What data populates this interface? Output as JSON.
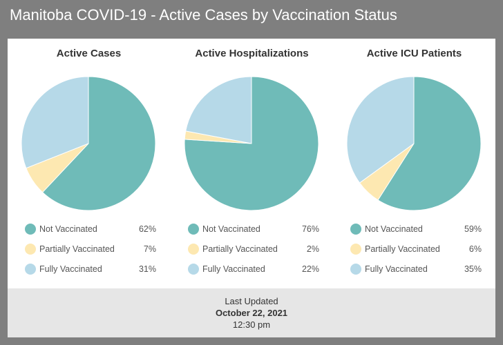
{
  "header": {
    "title": "Manitoba COVID-19 - Active Cases by Vaccination Status"
  },
  "colors": {
    "not_vaccinated": "#6fbbb8",
    "partially_vaccinated": "#fde8b1",
    "fully_vaccinated": "#b6d9e8"
  },
  "chart_data": [
    {
      "type": "pie",
      "title": "Active Cases",
      "labels": [
        "Not Vaccinated",
        "Partially Vaccinated",
        "Fully Vaccinated"
      ],
      "values": [
        62,
        7,
        31
      ],
      "display": [
        "62%",
        "7%",
        "31%"
      ]
    },
    {
      "type": "pie",
      "title": "Active Hospitalizations",
      "labels": [
        "Not Vaccinated",
        "Partially Vaccinated",
        "Fully Vaccinated"
      ],
      "values": [
        76,
        2,
        22
      ],
      "display": [
        "76%",
        "2%",
        "22%"
      ]
    },
    {
      "type": "pie",
      "title": "Active ICU Patients",
      "labels": [
        "Not Vaccinated",
        "Partially Vaccinated",
        "Fully Vaccinated"
      ],
      "values": [
        59,
        6,
        35
      ],
      "display": [
        "59%",
        "6%",
        "35%"
      ]
    }
  ],
  "footer": {
    "label": "Last Updated",
    "date": "October 22, 2021",
    "time": "12:30 pm"
  }
}
